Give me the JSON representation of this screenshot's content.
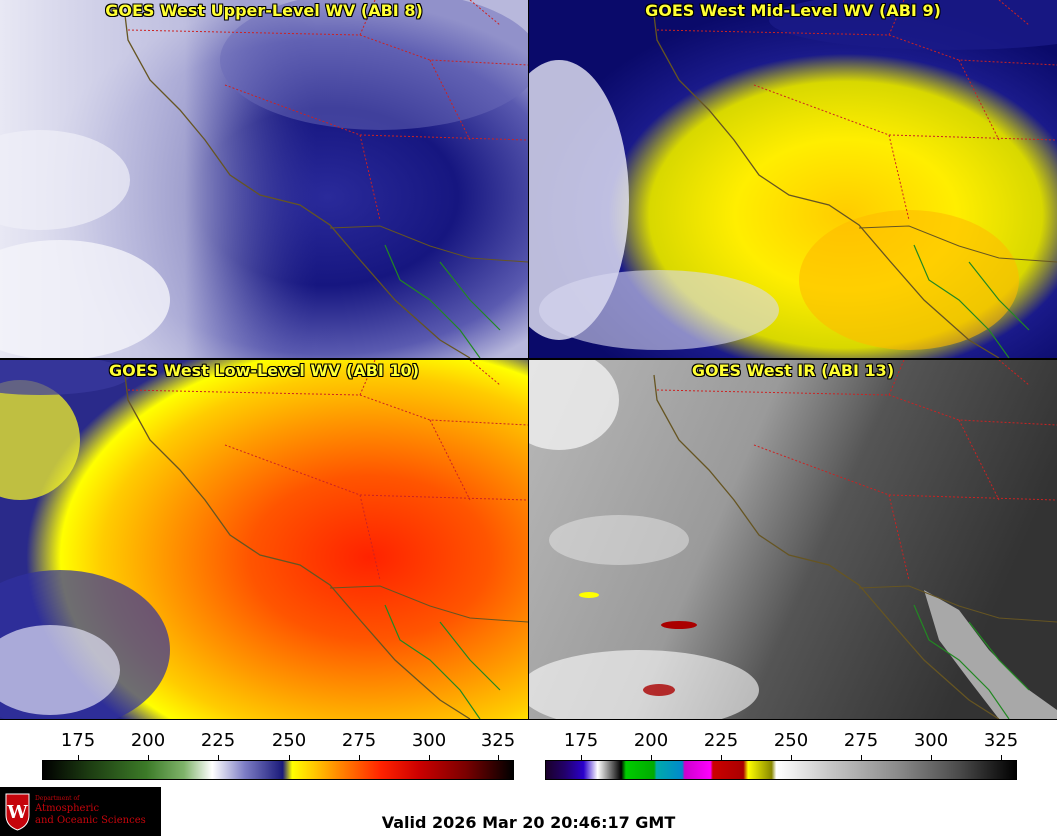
{
  "panels": [
    {
      "title": "GOES West Upper-Level WV (ABI 8)"
    },
    {
      "title": "GOES West Mid-Level WV (ABI 9)"
    },
    {
      "title": "GOES West Low-Level WV (ABI 10)"
    },
    {
      "title": "GOES West IR (ABI 13)"
    }
  ],
  "colorbars": [
    {
      "ticks": [
        "175",
        "200",
        "225",
        "250",
        "275",
        "300",
        "325"
      ]
    },
    {
      "ticks": [
        "175",
        "200",
        "225",
        "250",
        "275",
        "300",
        "325"
      ]
    }
  ],
  "logo": {
    "dept": "Department of",
    "line1": "Atmospheric",
    "line2": "and Oceanic Sciences"
  },
  "valid_time": "Valid 2026 Mar 20 20:46:17 GMT",
  "colors": {
    "title_text": "#ffff33",
    "state_borders": "#cc2222",
    "coastline": "#665522",
    "mexico_coast": "#228822",
    "logo_red": "#c5050c"
  }
}
